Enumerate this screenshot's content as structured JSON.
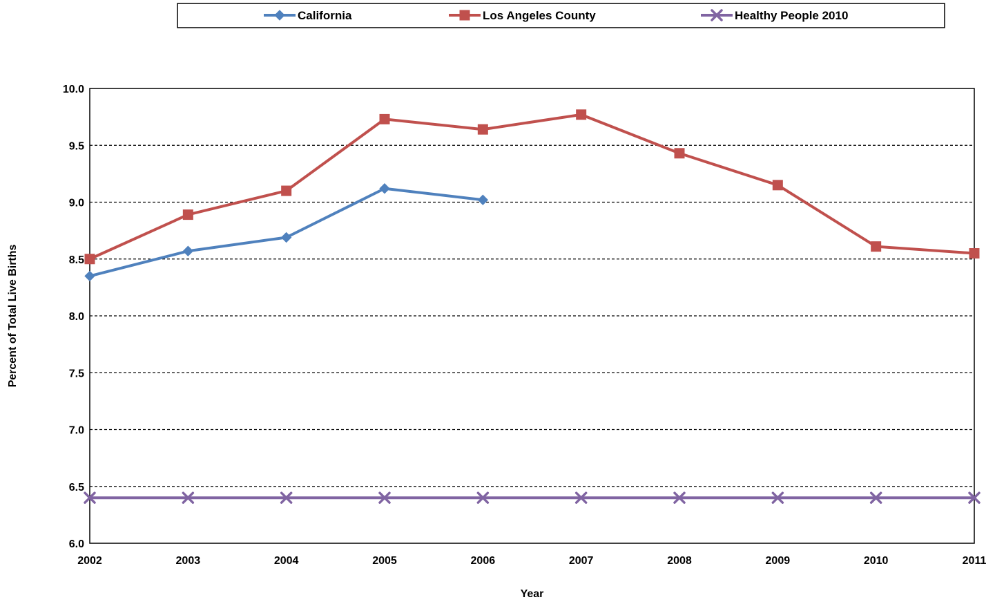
{
  "chart_data": {
    "type": "line",
    "x": [
      "2002",
      "2003",
      "2004",
      "2005",
      "2006",
      "2007",
      "2008",
      "2009",
      "2010",
      "2011"
    ],
    "series": [
      {
        "name": "California",
        "color": "#4F81BD",
        "marker": "diamond",
        "values": [
          8.35,
          8.57,
          8.69,
          9.12,
          9.02,
          null,
          null,
          null,
          null,
          null
        ]
      },
      {
        "name": "Los Angeles County",
        "color": "#C0504D",
        "marker": "square",
        "values": [
          8.5,
          8.89,
          9.1,
          9.73,
          9.64,
          9.77,
          9.43,
          9.15,
          8.61,
          8.55
        ]
      },
      {
        "name": "Healthy People 2010",
        "color": "#8064A2",
        "marker": "x",
        "values": [
          6.4,
          6.4,
          6.4,
          6.4,
          6.4,
          6.4,
          6.4,
          6.4,
          6.4,
          6.4
        ]
      }
    ],
    "xlabel": "Year",
    "ylabel": "Percent of Total Live Births",
    "ylim": [
      6.0,
      10.0
    ],
    "yticks": [
      "6.0",
      "6.5",
      "7.0",
      "7.5",
      "8.0",
      "8.5",
      "9.0",
      "9.5",
      "10.0"
    ],
    "grid": "horizontal dashed",
    "legend_position": "top"
  }
}
